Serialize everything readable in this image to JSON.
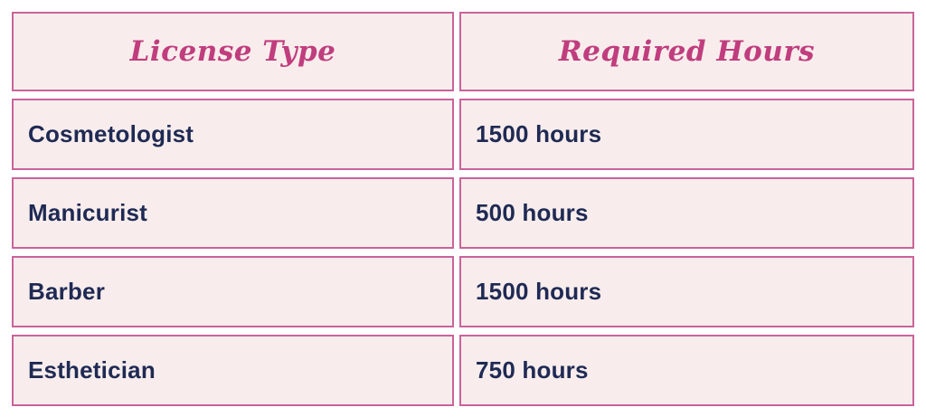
{
  "chart_data": {
    "type": "table",
    "columns": [
      "License Type",
      "Required Hours"
    ],
    "rows": [
      [
        "Cosmetologist",
        "1500 hours"
      ],
      [
        "Manicurist",
        "500 hours"
      ],
      [
        "Barber",
        "1500 hours"
      ],
      [
        "Esthetician",
        "750 hours"
      ]
    ],
    "layout_hints": {
      "header_style": "italic serif, centered",
      "body_style": "bold sans, left-aligned",
      "grid": "separated cells with white gaps"
    }
  },
  "colors": {
    "page_background": "#ffffff",
    "cell_background": "#f8edec",
    "cell_border": "#c9639b",
    "header_text": "#c03d7e",
    "body_text": "#1f2a54"
  }
}
